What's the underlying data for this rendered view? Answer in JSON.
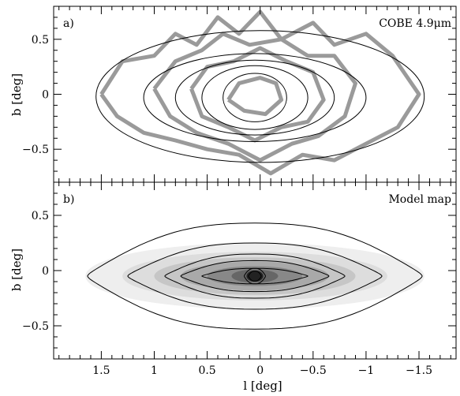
{
  "chart_data": [
    {
      "panel_label": "a)",
      "type": "contour",
      "title": "COBE 4.9μm",
      "ylabel": "b [deg]",
      "xlim": [
        1.95,
        -1.85
      ],
      "ylim": [
        -0.8,
        0.8
      ],
      "y_ticks": [
        -0.5,
        0,
        0.5
      ],
      "y_tick_labels": [
        "−0.5",
        "0",
        "0.5"
      ],
      "grid": false,
      "series": [
        {
          "style": "thin-black",
          "contours": [
            {
              "center": [
                0.0,
                -0.02
              ],
              "half_width": 1.55,
              "half_height": 0.6
            },
            {
              "center": [
                0.05,
                -0.03
              ],
              "half_width": 1.05,
              "half_height": 0.4
            },
            {
              "center": [
                0.05,
                -0.03
              ],
              "half_width": 0.75,
              "half_height": 0.34
            },
            {
              "center": [
                0.05,
                -0.03
              ],
              "half_width": 0.5,
              "half_height": 0.29
            },
            {
              "center": [
                0.05,
                -0.03
              ],
              "half_width": 0.3,
              "half_height": 0.22
            }
          ]
        },
        {
          "style": "thick-gray",
          "contours": [
            [
              [
                1.5,
                0.0
              ],
              [
                1.3,
                0.3
              ],
              [
                1.0,
                0.35
              ],
              [
                0.8,
                0.55
              ],
              [
                0.6,
                0.45
              ],
              [
                0.4,
                0.7
              ],
              [
                0.2,
                0.55
              ],
              [
                0.0,
                0.75
              ],
              [
                -0.2,
                0.5
              ],
              [
                -0.5,
                0.65
              ],
              [
                -0.7,
                0.45
              ],
              [
                -1.0,
                0.55
              ],
              [
                -1.25,
                0.35
              ],
              [
                -1.5,
                0.0
              ],
              [
                -1.3,
                -0.3
              ],
              [
                -1.0,
                -0.45
              ],
              [
                -0.7,
                -0.6
              ],
              [
                -0.4,
                -0.55
              ],
              [
                -0.1,
                -0.72
              ],
              [
                0.2,
                -0.55
              ],
              [
                0.5,
                -0.5
              ],
              [
                0.8,
                -0.42
              ],
              [
                1.1,
                -0.35
              ],
              [
                1.35,
                -0.2
              ],
              [
                1.5,
                0.0
              ]
            ],
            [
              [
                1.0,
                0.05
              ],
              [
                0.8,
                0.3
              ],
              [
                0.55,
                0.4
              ],
              [
                0.35,
                0.55
              ],
              [
                0.1,
                0.45
              ],
              [
                -0.2,
                0.5
              ],
              [
                -0.45,
                0.35
              ],
              [
                -0.7,
                0.35
              ],
              [
                -0.9,
                0.1
              ],
              [
                -0.8,
                -0.2
              ],
              [
                -0.55,
                -0.38
              ],
              [
                -0.3,
                -0.45
              ],
              [
                0.0,
                -0.6
              ],
              [
                0.3,
                -0.45
              ],
              [
                0.6,
                -0.35
              ],
              [
                0.85,
                -0.2
              ],
              [
                1.0,
                0.05
              ]
            ],
            [
              [
                0.65,
                0.05
              ],
              [
                0.5,
                0.25
              ],
              [
                0.25,
                0.3
              ],
              [
                0.0,
                0.42
              ],
              [
                -0.25,
                0.3
              ],
              [
                -0.5,
                0.2
              ],
              [
                -0.6,
                -0.05
              ],
              [
                -0.45,
                -0.25
              ],
              [
                -0.2,
                -0.3
              ],
              [
                0.05,
                -0.42
              ],
              [
                0.3,
                -0.3
              ],
              [
                0.55,
                -0.2
              ],
              [
                0.65,
                0.05
              ]
            ],
            [
              [
                0.3,
                -0.05
              ],
              [
                0.2,
                0.1
              ],
              [
                0.0,
                0.15
              ],
              [
                -0.15,
                0.1
              ],
              [
                -0.2,
                -0.05
              ],
              [
                -0.05,
                -0.18
              ],
              [
                0.15,
                -0.15
              ],
              [
                0.3,
                -0.05
              ]
            ]
          ]
        }
      ]
    },
    {
      "panel_label": "b)",
      "type": "heatmap",
      "title": "Model map",
      "xlabel": "l [deg]",
      "ylabel": "b [deg]",
      "xlim": [
        1.95,
        -1.85
      ],
      "ylim": [
        -0.8,
        0.8
      ],
      "x_ticks": [
        1.5,
        1,
        0.5,
        0,
        -0.5,
        -1,
        -1.5
      ],
      "x_tick_labels": [
        "1.5",
        "1",
        "0.5",
        "0",
        "−0.5",
        "−1",
        "−1.5"
      ],
      "y_ticks": [
        -0.5,
        0,
        0.5
      ],
      "y_tick_labels": [
        "−0.5",
        "0",
        "0.5"
      ],
      "grid": false,
      "center": [
        0.05,
        -0.05
      ],
      "shading_levels": [
        {
          "half_width": 1.6,
          "half_height": 0.3,
          "gray": "#eeeeee"
        },
        {
          "half_width": 1.25,
          "half_height": 0.22,
          "gray": "#dddddd"
        },
        {
          "half_width": 0.95,
          "half_height": 0.17,
          "gray": "#c6c6c6"
        },
        {
          "half_width": 0.7,
          "half_height": 0.13,
          "gray": "#a9a9a9"
        },
        {
          "half_width": 0.45,
          "half_height": 0.09,
          "gray": "#888888"
        },
        {
          "half_width": 0.22,
          "half_height": 0.06,
          "gray": "#666666"
        },
        {
          "half_width": 0.08,
          "half_height": 0.05,
          "gray": "#222222"
        }
      ],
      "contours": [
        {
          "half_width": 1.58,
          "half_height": 0.48,
          "waist": 0.4
        },
        {
          "half_width": 1.2,
          "half_height": 0.3,
          "waist": 0.45
        },
        {
          "half_width": 0.85,
          "half_height": 0.2,
          "waist": 0.45
        },
        {
          "half_width": 0.7,
          "half_height": 0.14,
          "waist": 0.45
        },
        {
          "half_width": 0.5,
          "half_height": 0.07,
          "waist": 0.5
        },
        {
          "half_width": 0.1,
          "half_height": 0.07,
          "waist": 1.0
        },
        {
          "half_width": 0.06,
          "half_height": 0.045,
          "waist": 1.0
        }
      ]
    }
  ]
}
